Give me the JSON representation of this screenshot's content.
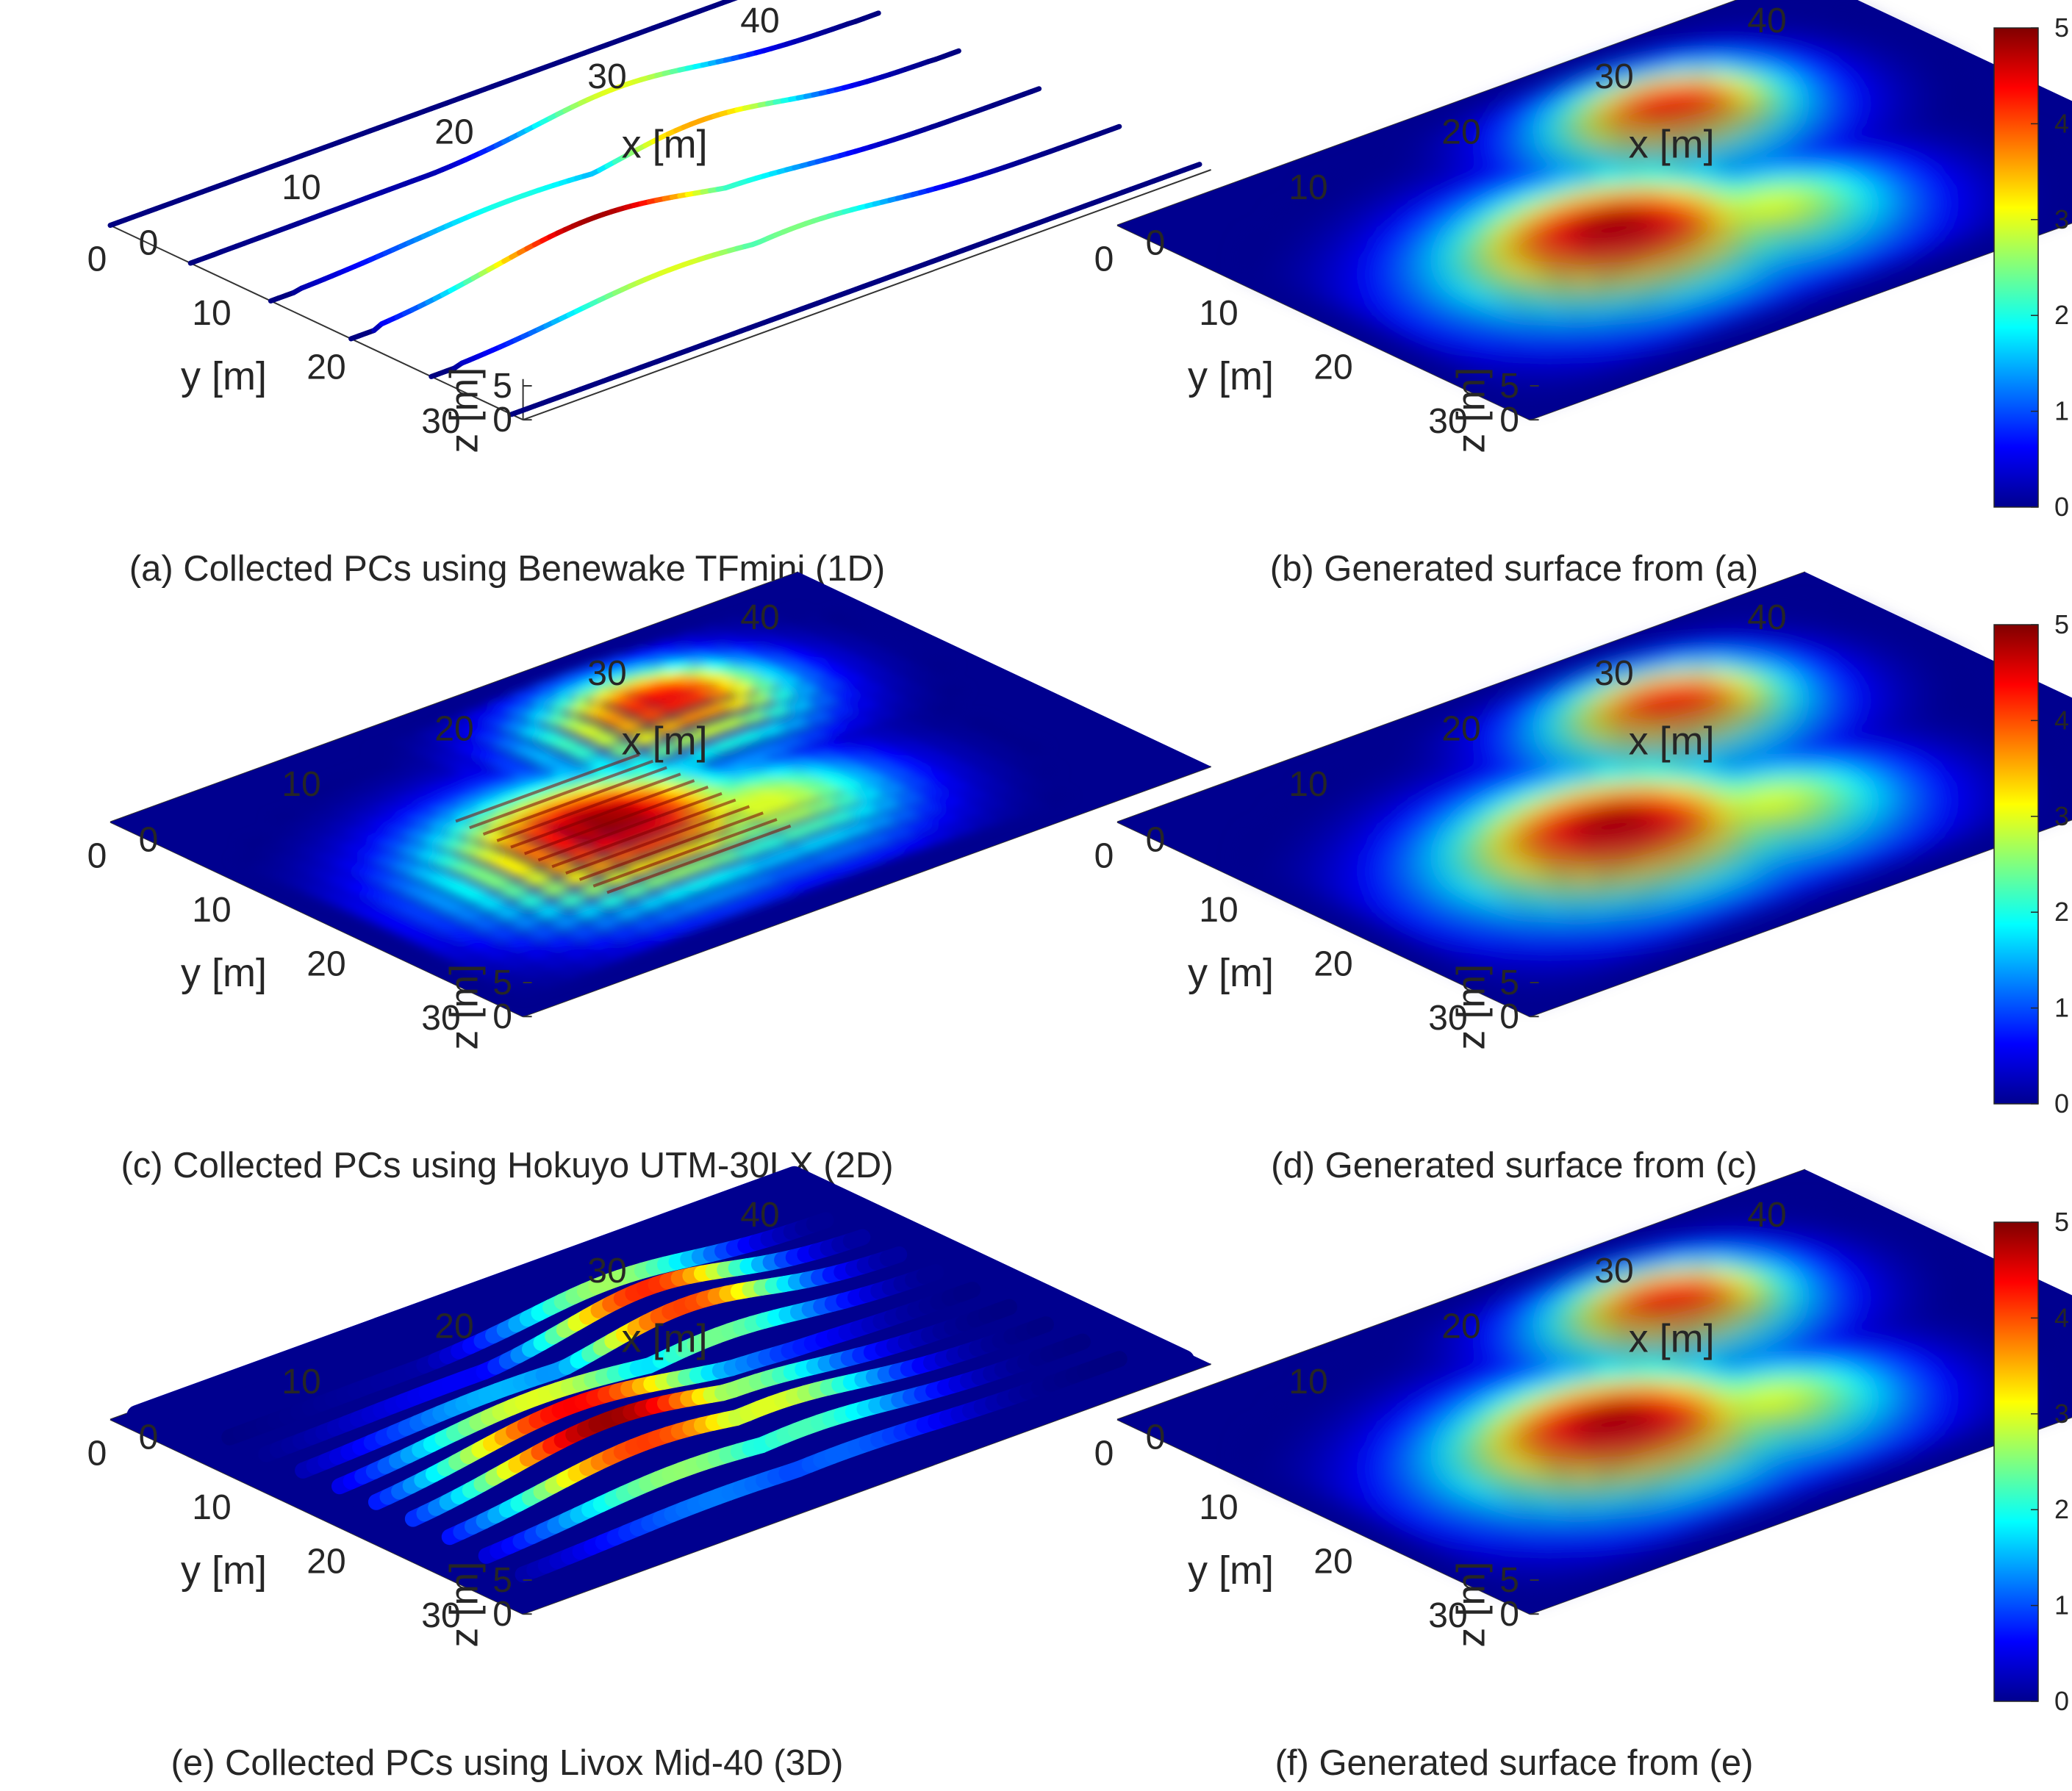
{
  "figure": {
    "colormap": "jet",
    "colors": {
      "deep_blue": "#00008f",
      "blue": "#0000ff",
      "cyan": "#00ffff",
      "yellow": "#ffff00",
      "red": "#ff0000",
      "dark_red": "#800000",
      "background": "#ffffff",
      "axis_line": "#333333"
    }
  },
  "chart_data": [
    {
      "id": "a",
      "type": "scatter3d",
      "caption": "(a) Collected PCs using Benewake TFmini (1D)",
      "xlabel": "x [m]",
      "ylabel": "y [m]",
      "zlabel": "z [m]",
      "xticks": [
        "0",
        "10",
        "20",
        "30",
        "40"
      ],
      "yticks": [
        "0",
        "10",
        "20",
        "30"
      ],
      "zticks": [
        "0",
        "5"
      ],
      "xlim": [
        0,
        45
      ],
      "ylim": [
        0,
        36
      ],
      "zlim": [
        0,
        5
      ],
      "render": "lines",
      "scan_lines_y_m": [
        0,
        7,
        14,
        21,
        28,
        35
      ],
      "colorbar": null
    },
    {
      "id": "b",
      "type": "surface",
      "caption": "(b) Generated surface from (a)",
      "xlabel": "x [m]",
      "ylabel": "y [m]",
      "zlabel": "z [m]",
      "xticks": [
        "0",
        "10",
        "20",
        "30",
        "40"
      ],
      "yticks": [
        "0",
        "10",
        "20",
        "30"
      ],
      "zticks": [
        "0",
        "5"
      ],
      "xlim": [
        0,
        45
      ],
      "ylim": [
        0,
        36
      ],
      "zlim": [
        0,
        5
      ],
      "render": "surface",
      "colorbar": {
        "ticks": [
          "0",
          "1",
          "2",
          "3",
          "4",
          "5"
        ],
        "clim": [
          0,
          5
        ]
      }
    },
    {
      "id": "c",
      "type": "scatter3d",
      "caption": "(c) Collected PCs using Hokuyo UTM-30LX (2D)",
      "xlabel": "x [m]",
      "ylabel": "y [m]",
      "zlabel": "z [m]",
      "xticks": [
        "0",
        "10",
        "20",
        "30",
        "40"
      ],
      "yticks": [
        "0",
        "10",
        "20",
        "30"
      ],
      "zticks": [
        "0",
        "5"
      ],
      "xlim": [
        0,
        45
      ],
      "ylim": [
        0,
        36
      ],
      "zlim": [
        0,
        5
      ],
      "render": "dense",
      "colorbar": null
    },
    {
      "id": "d",
      "type": "surface",
      "caption": "(d) Generated surface from (c)",
      "xlabel": "x [m]",
      "ylabel": "y [m]",
      "zlabel": "z [m]",
      "xticks": [
        "0",
        "10",
        "20",
        "30",
        "40"
      ],
      "yticks": [
        "0",
        "10",
        "20",
        "30"
      ],
      "zticks": [
        "0",
        "5"
      ],
      "xlim": [
        0,
        45
      ],
      "ylim": [
        0,
        36
      ],
      "zlim": [
        0,
        5
      ],
      "render": "surface",
      "colorbar": {
        "ticks": [
          "0",
          "1",
          "2",
          "3",
          "4",
          "5"
        ],
        "clim": [
          0,
          5
        ]
      }
    },
    {
      "id": "e",
      "type": "scatter3d",
      "caption": "(e) Collected PCs using Livox Mid-40 (3D)",
      "xlabel": "x [m]",
      "ylabel": "y [m]",
      "zlabel": "z [m]",
      "xticks": [
        "0",
        "10",
        "20",
        "30",
        "40"
      ],
      "yticks": [
        "0",
        "10",
        "20",
        "30"
      ],
      "zticks": [
        "0",
        "5"
      ],
      "xlim": [
        0,
        45
      ],
      "ylim": [
        0,
        36
      ],
      "zlim": [
        0,
        5
      ],
      "render": "bands",
      "colorbar": null
    },
    {
      "id": "f",
      "type": "surface",
      "caption": "(f) Generated surface from (e)",
      "xlabel": "x [m]",
      "ylabel": "y [m]",
      "zlabel": "z [m]",
      "xticks": [
        "0",
        "10",
        "20",
        "30",
        "40"
      ],
      "yticks": [
        "0",
        "10",
        "20",
        "30"
      ],
      "zticks": [
        "0",
        "5"
      ],
      "xlim": [
        0,
        45
      ],
      "ylim": [
        0,
        36
      ],
      "zlim": [
        0,
        5
      ],
      "render": "surface",
      "colorbar": {
        "ticks": [
          "0",
          "1",
          "2",
          "3",
          "4",
          "5"
        ],
        "clim": [
          0,
          5
        ]
      }
    }
  ]
}
